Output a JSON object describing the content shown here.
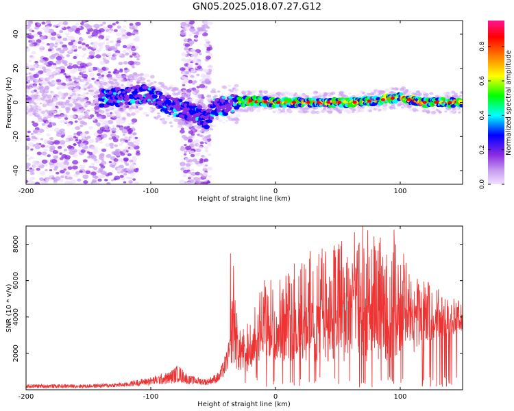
{
  "title": "GN05.2025.018.07.27.G12",
  "chart_data": [
    {
      "type": "heatmap",
      "xlabel": "Height of straight line (km)",
      "ylabel": "Frequency (Hz)",
      "xlim": [
        -200,
        150
      ],
      "ylim": [
        -48,
        48
      ],
      "xticks": [
        -200,
        -100,
        0,
        100
      ],
      "yticks": [
        -40,
        -20,
        0,
        20,
        40
      ],
      "colorbar": {
        "label": "Normalized spectral amplitude",
        "range": [
          0.0,
          0.95
        ],
        "ticks": [
          0.0,
          0.2,
          0.4,
          0.6,
          0.8
        ],
        "colormap": [
          "#f0e0ff",
          "#c9a0f0",
          "#8a2be2",
          "#0000ff",
          "#00ffff",
          "#00ff00",
          "#ffff00",
          "#ff7f00",
          "#ff0000",
          "#ff1493"
        ]
      },
      "ridge": {
        "x": [
          -130,
          -110,
          -100,
          -90,
          -80,
          -70,
          -60,
          -55,
          -50,
          -40,
          -30,
          -20,
          0,
          20,
          40,
          60,
          80,
          100,
          110,
          120,
          150
        ],
        "y": [
          3,
          5,
          4,
          0,
          -3,
          -5,
          -8,
          -12,
          -3,
          -2,
          0,
          1,
          0,
          0,
          0,
          0,
          1,
          3,
          1,
          0,
          0
        ]
      },
      "scatter_regions": [
        {
          "x_range": [
            -200,
            -110
          ],
          "y_range": [
            -48,
            48
          ],
          "density": "high"
        },
        {
          "x_range": [
            -75,
            -52
          ],
          "y_range": [
            -48,
            48
          ],
          "density": "medium"
        }
      ]
    },
    {
      "type": "line",
      "xlabel": "Height of straight line (km)",
      "ylabel": "SNR (10 * v/v)",
      "xlim": [
        -200,
        150
      ],
      "ylim": [
        0,
        9000
      ],
      "xticks": [
        -200,
        -100,
        0,
        100
      ],
      "yticks": [
        2000,
        4000,
        6000,
        8000
      ],
      "color": "#ee3333",
      "envelope": {
        "x": [
          -200,
          -150,
          -120,
          -115,
          -100,
          -85,
          -78,
          -70,
          -55,
          -45,
          -40,
          -36,
          -34,
          -30,
          -25,
          -20,
          -10,
          0,
          20,
          40,
          60,
          70,
          80,
          100,
          120,
          150
        ],
        "low": [
          100,
          100,
          150,
          200,
          250,
          300,
          400,
          300,
          250,
          400,
          800,
          1500,
          1200,
          1000,
          800,
          1200,
          1500,
          1500,
          1500,
          1500,
          1500,
          1500,
          1500,
          1500,
          2500,
          3200
        ],
        "high": [
          300,
          300,
          400,
          500,
          700,
          1000,
          1400,
          800,
          600,
          1000,
          2000,
          3000,
          7500,
          3200,
          3500,
          3800,
          6000,
          6500,
          7500,
          8000,
          8500,
          9000,
          8600,
          8000,
          6000,
          4800
        ]
      },
      "spikes": [
        {
          "x": -36,
          "y": 7500
        },
        {
          "x": 70,
          "y": 9000
        },
        {
          "x": 95,
          "y": 8800
        },
        {
          "x": 40,
          "y": 7600
        }
      ]
    }
  ]
}
